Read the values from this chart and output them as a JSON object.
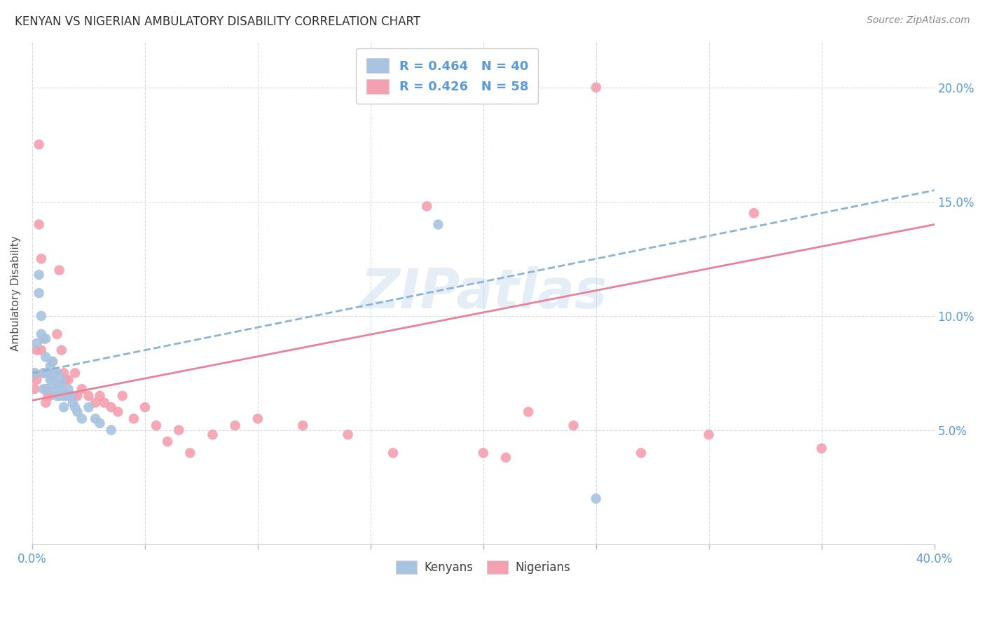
{
  "title": "KENYAN VS NIGERIAN AMBULATORY DISABILITY CORRELATION CHART",
  "source": "Source: ZipAtlas.com",
  "ylabel": "Ambulatory Disability",
  "xmin": 0.0,
  "xmax": 0.4,
  "ymin": 0.0,
  "ymax": 0.22,
  "x_ticks": [
    0.0,
    0.05,
    0.1,
    0.15,
    0.2,
    0.25,
    0.3,
    0.35,
    0.4
  ],
  "y_ticks": [
    0.0,
    0.05,
    0.1,
    0.15,
    0.2
  ],
  "x_tick_labels": [
    "0.0%",
    "",
    "",
    "",
    "",
    "",
    "",
    "",
    "40.0%"
  ],
  "y_tick_labels_right": [
    "",
    "5.0%",
    "10.0%",
    "15.0%",
    "20.0%"
  ],
  "legend_R_kenya": "R = 0.464",
  "legend_N_kenya": "N = 40",
  "legend_R_nigeria": "R = 0.426",
  "legend_N_nigeria": "N = 58",
  "kenya_color": "#a8c4e0",
  "nigeria_color": "#f4a0b0",
  "kenya_line_color": "#8ab4d8",
  "nigeria_line_color": "#e8829a",
  "axis_color": "#5b9bd5",
  "grid_color": "#d0dce8",
  "title_color": "#303030",
  "watermark": "ZIPatlas",
  "kenya_x": [
    0.001,
    0.002,
    0.003,
    0.003,
    0.004,
    0.004,
    0.005,
    0.005,
    0.006,
    0.006,
    0.007,
    0.007,
    0.008,
    0.008,
    0.009,
    0.009,
    0.01,
    0.01,
    0.011,
    0.011,
    0.011,
    0.012,
    0.012,
    0.013,
    0.013,
    0.014,
    0.014,
    0.015,
    0.016,
    0.017,
    0.018,
    0.019,
    0.02,
    0.022,
    0.025,
    0.028,
    0.03,
    0.035,
    0.18,
    0.25
  ],
  "kenya_y": [
    0.075,
    0.088,
    0.118,
    0.11,
    0.1,
    0.092,
    0.075,
    0.068,
    0.09,
    0.082,
    0.075,
    0.068,
    0.078,
    0.072,
    0.08,
    0.072,
    0.075,
    0.068,
    0.075,
    0.07,
    0.065,
    0.07,
    0.065,
    0.072,
    0.068,
    0.065,
    0.06,
    0.065,
    0.068,
    0.065,
    0.062,
    0.06,
    0.058,
    0.055,
    0.06,
    0.055,
    0.053,
    0.05,
    0.14,
    0.02
  ],
  "nigeria_x": [
    0.001,
    0.001,
    0.002,
    0.002,
    0.003,
    0.003,
    0.004,
    0.004,
    0.005,
    0.005,
    0.006,
    0.006,
    0.007,
    0.007,
    0.008,
    0.008,
    0.009,
    0.01,
    0.011,
    0.012,
    0.013,
    0.014,
    0.015,
    0.015,
    0.016,
    0.018,
    0.019,
    0.02,
    0.022,
    0.025,
    0.028,
    0.03,
    0.032,
    0.035,
    0.038,
    0.04,
    0.045,
    0.05,
    0.055,
    0.06,
    0.065,
    0.07,
    0.08,
    0.09,
    0.1,
    0.12,
    0.14,
    0.16,
    0.2,
    0.22,
    0.24,
    0.27,
    0.3,
    0.32,
    0.35,
    0.175,
    0.21,
    0.25
  ],
  "nigeria_y": [
    0.075,
    0.068,
    0.085,
    0.072,
    0.175,
    0.14,
    0.125,
    0.085,
    0.09,
    0.075,
    0.068,
    0.062,
    0.075,
    0.065,
    0.075,
    0.065,
    0.08,
    0.075,
    0.092,
    0.12,
    0.085,
    0.075,
    0.072,
    0.065,
    0.072,
    0.065,
    0.075,
    0.065,
    0.068,
    0.065,
    0.062,
    0.065,
    0.062,
    0.06,
    0.058,
    0.065,
    0.055,
    0.06,
    0.052,
    0.045,
    0.05,
    0.04,
    0.048,
    0.052,
    0.055,
    0.052,
    0.048,
    0.04,
    0.04,
    0.058,
    0.052,
    0.04,
    0.048,
    0.145,
    0.042,
    0.148,
    0.038,
    0.2
  ],
  "kenya_line_x": [
    0.0,
    0.4
  ],
  "kenya_line_y": [
    0.075,
    0.155
  ],
  "nigeria_line_x": [
    0.0,
    0.4
  ],
  "nigeria_line_y": [
    0.063,
    0.14
  ]
}
